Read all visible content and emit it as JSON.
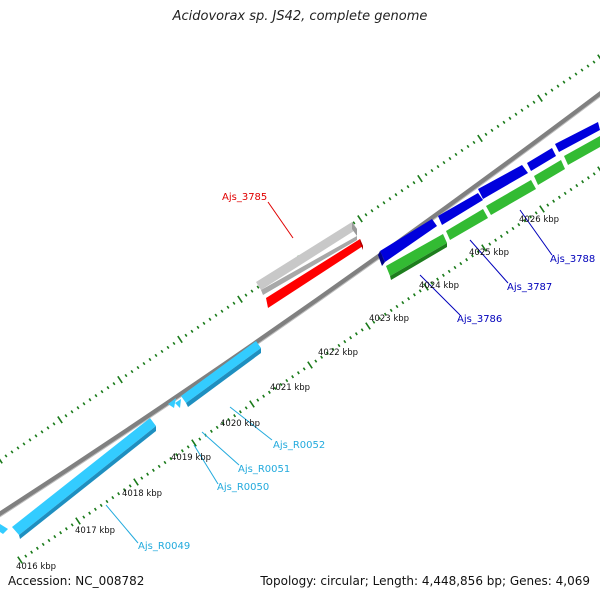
{
  "title": "Acidovorax sp. JS42, complete genome",
  "footer": {
    "accession": "Accession: NC_008782",
    "summary": "Topology: circular; Length: 4,448,856 bp; Genes: 4,069"
  },
  "colors": {
    "backbone": "#808080",
    "ticks": "#1a7a1a",
    "gray_gene": "#c8c8c8",
    "red_gene": "#ff0000",
    "blue_gene": "#0000dd",
    "green_gene": "#33bb33",
    "cyan_gene": "#33ccff",
    "red_label": "#e00000",
    "blue_label": "#0000bb",
    "cyan_label": "#22aadd"
  },
  "kbp_labels": [
    "4016 kbp",
    "4017 kbp",
    "4018 kbp",
    "4019 kbp",
    "4020 kbp",
    "4021 kbp",
    "4022 kbp",
    "4023 kbp",
    "4024 kbp",
    "4025 kbp",
    "4026 kbp"
  ],
  "gene_labels": {
    "Ajs_3785": "Ajs_3785",
    "Ajs_3786": "Ajs_3786",
    "Ajs_3787": "Ajs_3787",
    "Ajs_3788": "Ajs_3788",
    "Ajs_R0049": "Ajs_R0049",
    "Ajs_R0050": "Ajs_R0050",
    "Ajs_R0051": "Ajs_R0051",
    "Ajs_R0052": "Ajs_R0052"
  }
}
